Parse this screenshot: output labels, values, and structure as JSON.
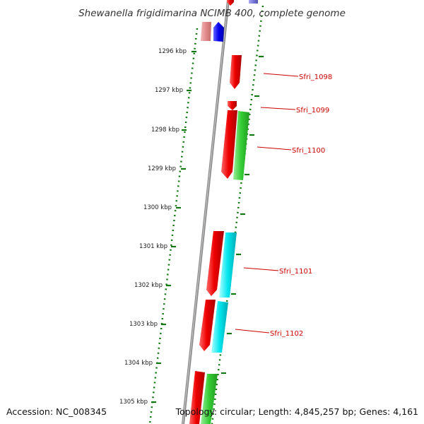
{
  "title": "Shewanella frigidimarina NCIMB 400, complete genome",
  "footer": {
    "accession": "Accession: NC_008345",
    "summary": "Topology: circular; Length: 4,845,257 bp; Genes: 4,161"
  },
  "kbp_labels": [
    "1296 kbp",
    "1297 kbp",
    "1298 kbp",
    "1299 kbp",
    "1300 kbp",
    "1301 kbp",
    "1302 kbp",
    "1303 kbp",
    "1304 kbp",
    "1305 kbp"
  ],
  "gene_labels": [
    "Sfri_1098",
    "Sfri_1099",
    "Sfri_1100",
    "Sfri_1101",
    "Sfri_1102"
  ],
  "colors": {
    "backbone": "#8a8a8a",
    "forward": "#ee0000",
    "forward_pale": "#e89090",
    "reverse_blue": "#0000ee",
    "reverse_purple": "#7777dd",
    "reverse_green": "#33cc33",
    "reverse_cyan": "#00e5ee",
    "scale_tick": "#117711",
    "label": "#cc0000"
  }
}
